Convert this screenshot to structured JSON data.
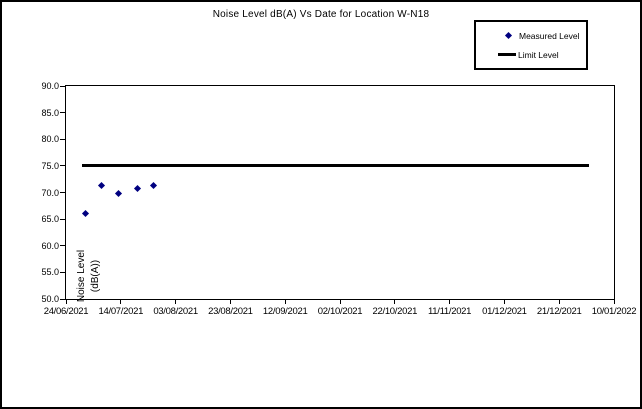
{
  "figure": {
    "title": "Noise Level dB(A) Vs Date for Location W-N18"
  },
  "legend": {
    "measured_label": "Measured Level",
    "limit_label": "Limit Level"
  },
  "colors": {
    "measured_marker": "#000080",
    "limit_line": "#000000",
    "text": "#000000"
  },
  "chart_data": {
    "type": "scatter",
    "title": "Noise Level dB(A) Vs Date for Location W-N18",
    "xlabel": "",
    "ylabel": "Noise Level (dB(A))",
    "ylabel_lines": [
      "Noise Level",
      "(dB(A))"
    ],
    "ylim": [
      50.0,
      90.0
    ],
    "y_tick_step": 5.0,
    "y_tick_labels": [
      "90.0",
      "85.0",
      "80.0",
      "75.0",
      "70.0",
      "65.0",
      "60.0",
      "55.0",
      "50.0"
    ],
    "x_tick_labels": [
      "24/06/2021",
      "14/07/2021",
      "03/08/2021",
      "23/08/2021",
      "12/09/2021",
      "02/10/2021",
      "22/10/2021",
      "11/11/2021",
      "01/12/2021",
      "21/12/2021",
      "10/01/2022"
    ],
    "x_axis": {
      "start_date": "24/06/2021",
      "end_date": "10/01/2022",
      "span_days": 200
    },
    "grid": false,
    "legend_position": "top-right",
    "series": [
      {
        "name": "Measured Level",
        "type": "scatter",
        "marker": "diamond",
        "color": "#000080",
        "points": [
          {
            "date": "01/07/2021",
            "value": 66.0
          },
          {
            "date": "07/07/2021",
            "value": 71.3
          },
          {
            "date": "13/07/2021",
            "value": 69.9
          },
          {
            "date": "20/07/2021",
            "value": 70.8
          },
          {
            "date": "26/07/2021",
            "value": 71.4
          }
        ]
      },
      {
        "name": "Limit Level",
        "type": "line",
        "color": "#000000",
        "value": 75.0,
        "start_date": "30/06/2021",
        "end_date": "01/01/2022"
      }
    ]
  }
}
